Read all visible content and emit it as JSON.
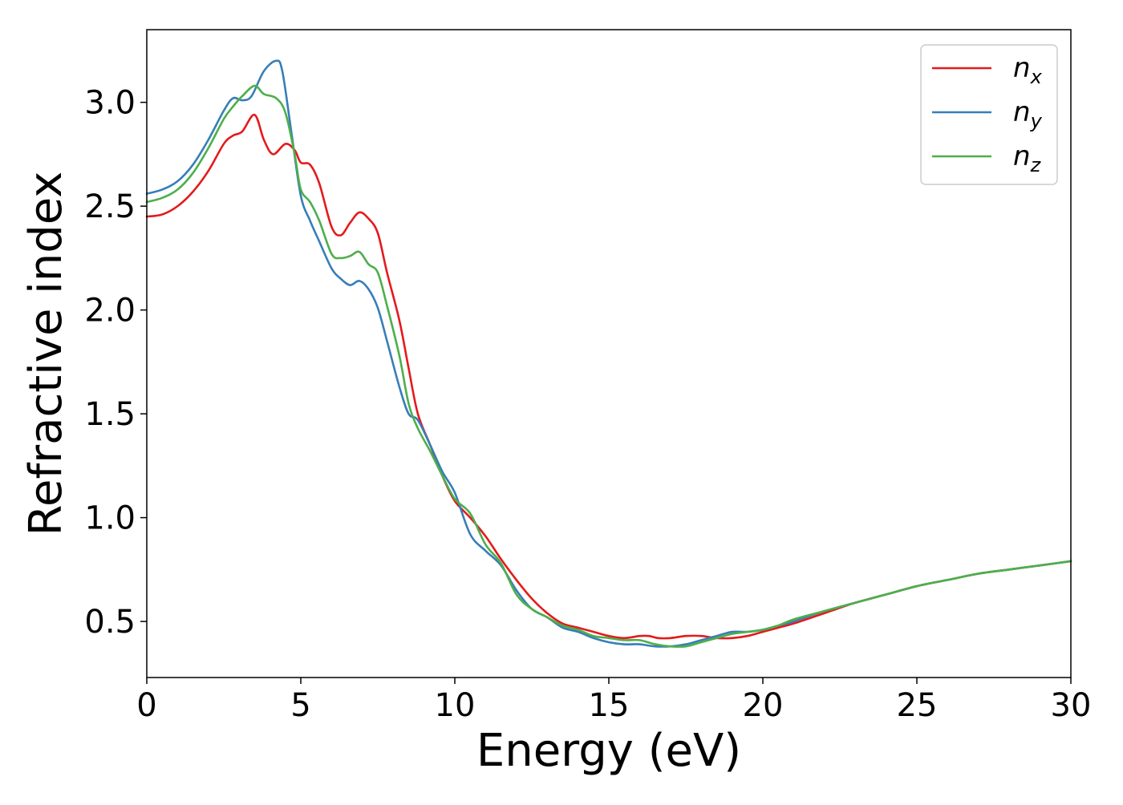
{
  "chart_data": {
    "type": "line",
    "title": "",
    "xlabel": "Energy (eV)",
    "ylabel": "Refractive index",
    "xlim": [
      0,
      30
    ],
    "ylim": [
      0.23,
      3.35
    ],
    "xticks": [
      0,
      5,
      10,
      15,
      20,
      25,
      30
    ],
    "xtick_labels": [
      "0",
      "5",
      "10",
      "15",
      "20",
      "25",
      "30"
    ],
    "yticks": [
      0.5,
      1.0,
      1.5,
      2.0,
      2.5,
      3.0
    ],
    "ytick_labels": [
      "0.5",
      "1.0",
      "1.5",
      "2.0",
      "2.5",
      "3.0"
    ],
    "grid": false,
    "legend_position": "top-right",
    "series": [
      {
        "name": "n",
        "subscript": "x",
        "color": "#e41a1c",
        "x": [
          0,
          0.5,
          1,
          1.5,
          2,
          2.5,
          2.8,
          3.1,
          3.5,
          3.8,
          4.1,
          4.5,
          4.8,
          5,
          5.3,
          5.6,
          6,
          6.3,
          6.6,
          6.9,
          7.2,
          7.5,
          7.8,
          8.2,
          8.5,
          8.8,
          9.2,
          9.6,
          10,
          10.5,
          11,
          11.5,
          12,
          12.5,
          13,
          13.5,
          14,
          14.5,
          15,
          15.5,
          16,
          16.3,
          16.6,
          17,
          17.5,
          18,
          18.5,
          19,
          19.5,
          20,
          20.5,
          21,
          22,
          23,
          24,
          25,
          26,
          27,
          28,
          29,
          30
        ],
        "y": [
          2.45,
          2.46,
          2.5,
          2.57,
          2.67,
          2.8,
          2.84,
          2.86,
          2.94,
          2.82,
          2.75,
          2.8,
          2.77,
          2.71,
          2.7,
          2.61,
          2.4,
          2.36,
          2.42,
          2.47,
          2.44,
          2.37,
          2.18,
          1.95,
          1.72,
          1.5,
          1.35,
          1.2,
          1.08,
          1.0,
          0.91,
          0.8,
          0.7,
          0.61,
          0.54,
          0.49,
          0.47,
          0.45,
          0.43,
          0.42,
          0.43,
          0.43,
          0.42,
          0.42,
          0.43,
          0.43,
          0.42,
          0.42,
          0.43,
          0.45,
          0.47,
          0.49,
          0.54,
          0.59,
          0.63,
          0.67,
          0.7,
          0.73,
          0.75,
          0.77,
          0.79
        ]
      },
      {
        "name": "n",
        "subscript": "y",
        "color": "#377eb8",
        "x": [
          0,
          0.5,
          1,
          1.5,
          2,
          2.5,
          2.8,
          3.1,
          3.4,
          3.8,
          4.2,
          4.4,
          4.7,
          5,
          5.3,
          5.6,
          6,
          6.3,
          6.6,
          6.9,
          7.2,
          7.5,
          7.8,
          8.2,
          8.5,
          8.8,
          9.2,
          9.6,
          10,
          10.5,
          11,
          11.5,
          12,
          12.5,
          13,
          13.5,
          14,
          14.5,
          15,
          15.5,
          16,
          16.5,
          17,
          17.5,
          18,
          18.5,
          19,
          19.5,
          20,
          20.5,
          21,
          22,
          23,
          24,
          25,
          26,
          27,
          28,
          29,
          30
        ],
        "y": [
          2.56,
          2.58,
          2.62,
          2.7,
          2.82,
          2.96,
          3.02,
          3.01,
          3.03,
          3.15,
          3.2,
          3.15,
          2.85,
          2.55,
          2.43,
          2.33,
          2.2,
          2.15,
          2.12,
          2.14,
          2.1,
          2.01,
          1.85,
          1.63,
          1.5,
          1.47,
          1.35,
          1.22,
          1.12,
          0.92,
          0.84,
          0.77,
          0.65,
          0.56,
          0.52,
          0.47,
          0.45,
          0.42,
          0.4,
          0.39,
          0.39,
          0.38,
          0.38,
          0.39,
          0.41,
          0.43,
          0.45,
          0.45,
          0.46,
          0.48,
          0.5,
          0.55,
          0.59,
          0.63,
          0.67,
          0.7,
          0.73,
          0.75,
          0.77,
          0.79
        ]
      },
      {
        "name": "n",
        "subscript": "z",
        "color": "#4daf4a",
        "x": [
          0,
          0.5,
          1,
          1.5,
          2,
          2.5,
          2.8,
          3.1,
          3.5,
          3.8,
          4.2,
          4.5,
          4.8,
          5,
          5.3,
          5.6,
          6,
          6.3,
          6.6,
          6.9,
          7.2,
          7.5,
          7.8,
          8.2,
          8.5,
          8.8,
          9.2,
          9.6,
          10,
          10.5,
          11,
          11.5,
          12,
          12.5,
          13,
          13.5,
          14,
          14.5,
          15,
          15.5,
          16,
          16.5,
          17,
          17.5,
          18,
          18.5,
          19,
          19.5,
          20,
          20.5,
          21,
          22,
          23,
          24,
          25,
          26,
          27,
          28,
          29,
          30
        ],
        "y": [
          2.52,
          2.54,
          2.58,
          2.66,
          2.78,
          2.92,
          2.98,
          3.03,
          3.08,
          3.04,
          3.02,
          2.95,
          2.75,
          2.58,
          2.52,
          2.43,
          2.27,
          2.25,
          2.26,
          2.28,
          2.22,
          2.18,
          2.02,
          1.78,
          1.55,
          1.43,
          1.32,
          1.2,
          1.09,
          1.02,
          0.87,
          0.78,
          0.63,
          0.56,
          0.52,
          0.48,
          0.46,
          0.43,
          0.42,
          0.41,
          0.41,
          0.39,
          0.38,
          0.38,
          0.4,
          0.42,
          0.44,
          0.45,
          0.46,
          0.48,
          0.51,
          0.55,
          0.59,
          0.63,
          0.67,
          0.7,
          0.73,
          0.75,
          0.77,
          0.79
        ]
      }
    ]
  }
}
